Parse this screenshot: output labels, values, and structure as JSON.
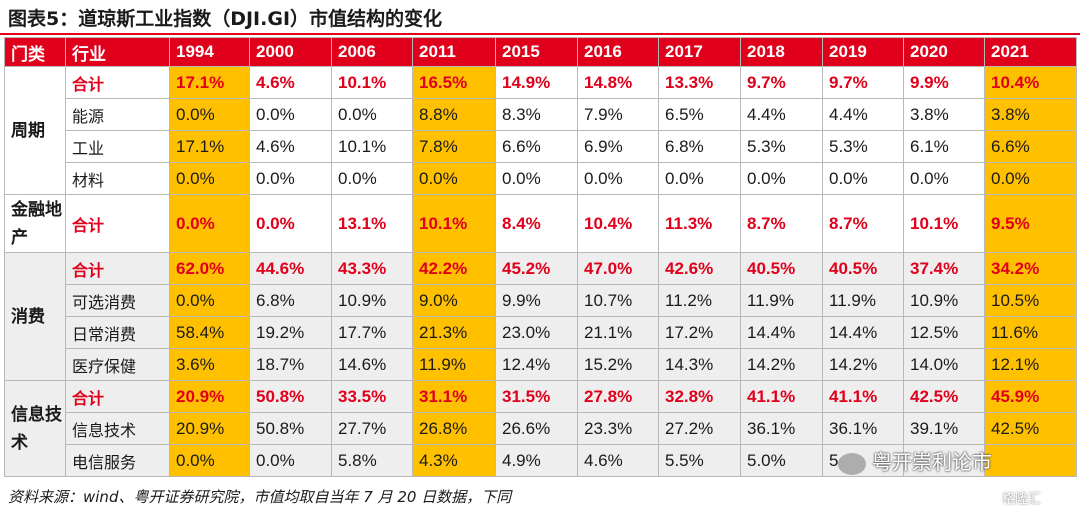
{
  "title": "图表5：道琼斯工业指数（DJI.GI）市值结构的变化",
  "columns": [
    "门类",
    "行业",
    "1994",
    "2000",
    "2006",
    "2011",
    "2015",
    "2016",
    "2017",
    "2018",
    "2019",
    "2020",
    "2021"
  ],
  "groups": {
    "cyclical": {
      "name": "周期",
      "rows": [
        {
          "label": "合计",
          "values": [
            "17.1%",
            "4.6%",
            "10.1%",
            "16.5%",
            "14.9%",
            "14.8%",
            "13.3%",
            "9.7%",
            "9.7%",
            "9.9%",
            "10.4%"
          ]
        },
        {
          "label": "能源",
          "values": [
            "0.0%",
            "0.0%",
            "0.0%",
            "8.8%",
            "8.3%",
            "7.9%",
            "6.5%",
            "4.4%",
            "4.4%",
            "3.8%",
            "3.8%"
          ]
        },
        {
          "label": "工业",
          "values": [
            "17.1%",
            "4.6%",
            "10.1%",
            "7.8%",
            "6.6%",
            "6.9%",
            "6.8%",
            "5.3%",
            "5.3%",
            "6.1%",
            "6.6%"
          ]
        },
        {
          "label": "材料",
          "values": [
            "0.0%",
            "0.0%",
            "0.0%",
            "0.0%",
            "0.0%",
            "0.0%",
            "0.0%",
            "0.0%",
            "0.0%",
            "0.0%",
            "0.0%"
          ]
        }
      ]
    },
    "finance": {
      "name": "金融地产",
      "rows": [
        {
          "label": "合计",
          "values": [
            "0.0%",
            "0.0%",
            "13.1%",
            "10.1%",
            "8.4%",
            "10.4%",
            "11.3%",
            "8.7%",
            "8.7%",
            "10.1%",
            "9.5%"
          ]
        }
      ]
    },
    "consumer": {
      "name": "消费",
      "rows": [
        {
          "label": "合计",
          "values": [
            "62.0%",
            "44.6%",
            "43.3%",
            "42.2%",
            "45.2%",
            "47.0%",
            "42.6%",
            "40.5%",
            "40.5%",
            "37.4%",
            "34.2%"
          ]
        },
        {
          "label": "可选消费",
          "values": [
            "0.0%",
            "6.8%",
            "10.9%",
            "9.0%",
            "9.9%",
            "10.7%",
            "11.2%",
            "11.9%",
            "11.9%",
            "10.9%",
            "10.5%"
          ]
        },
        {
          "label": "日常消费",
          "values": [
            "58.4%",
            "19.2%",
            "17.7%",
            "21.3%",
            "23.0%",
            "21.1%",
            "17.2%",
            "14.4%",
            "14.4%",
            "12.5%",
            "11.6%"
          ]
        },
        {
          "label": "医疗保健",
          "values": [
            "3.6%",
            "18.7%",
            "14.6%",
            "11.9%",
            "12.4%",
            "15.2%",
            "14.3%",
            "14.2%",
            "14.2%",
            "14.0%",
            "12.1%"
          ]
        }
      ]
    },
    "tech": {
      "name": "信息技术",
      "rows": [
        {
          "label": "合计",
          "values": [
            "20.9%",
            "50.8%",
            "33.5%",
            "31.1%",
            "31.5%",
            "27.8%",
            "32.8%",
            "41.1%",
            "41.1%",
            "42.5%",
            "45.9%"
          ]
        },
        {
          "label": "信息技术",
          "values": [
            "20.9%",
            "50.8%",
            "27.7%",
            "26.8%",
            "26.6%",
            "23.3%",
            "27.2%",
            "36.1%",
            "36.1%",
            "39.1%",
            "42.5%"
          ]
        },
        {
          "label": "电信服务",
          "values": [
            "0.0%",
            "0.0%",
            "5.8%",
            "4.3%",
            "4.9%",
            "4.6%",
            "5.5%",
            "5.0%",
            "5",
            "",
            ""
          ]
        }
      ]
    }
  },
  "footer": "资料来源：wind、粤开证券研究院，市值均取自当年 7 月 20 日数据，下同",
  "watermark": "粤开崇利论市",
  "watermark2": "格隆汇",
  "colors": {
    "header_red": "#e0001b",
    "highlight": "#ffc000",
    "total_red": "#e0001b"
  }
}
